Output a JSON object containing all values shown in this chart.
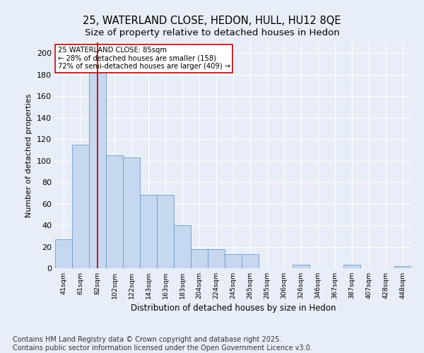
{
  "title1": "25, WATERLAND CLOSE, HEDON, HULL, HU12 8QE",
  "title2": "Size of property relative to detached houses in Hedon",
  "xlabel": "Distribution of detached houses by size in Hedon",
  "ylabel": "Number of detached properties",
  "categories": [
    "41sqm",
    "61sqm",
    "82sqm",
    "102sqm",
    "122sqm",
    "143sqm",
    "163sqm",
    "183sqm",
    "204sqm",
    "224sqm",
    "245sqm",
    "265sqm",
    "285sqm",
    "306sqm",
    "326sqm",
    "346sqm",
    "367sqm",
    "387sqm",
    "407sqm",
    "428sqm",
    "448sqm"
  ],
  "values": [
    27,
    115,
    190,
    105,
    103,
    68,
    68,
    40,
    18,
    18,
    13,
    13,
    0,
    0,
    3,
    0,
    0,
    3,
    0,
    0,
    2
  ],
  "bar_color": "#c5d8f0",
  "bar_edge_color": "#7099c0",
  "red_line_index": 2,
  "annotation_text": "25 WATERLAND CLOSE: 85sqm\n← 28% of detached houses are smaller (158)\n72% of semi-detached houses are larger (409) →",
  "annotation_box_color": "#ffffff",
  "annotation_box_edge_color": "#cc0000",
  "ylim": [
    0,
    210
  ],
  "yticks": [
    0,
    20,
    40,
    60,
    80,
    100,
    120,
    140,
    160,
    180,
    200
  ],
  "background_color": "#e8eef8",
  "grid_color": "#c8d4e8",
  "footer_text": "Contains HM Land Registry data © Crown copyright and database right 2025.\nContains public sector information licensed under the Open Government Licence v3.0.",
  "title_fontsize": 10.5,
  "subtitle_fontsize": 9.5,
  "footer_fontsize": 7
}
